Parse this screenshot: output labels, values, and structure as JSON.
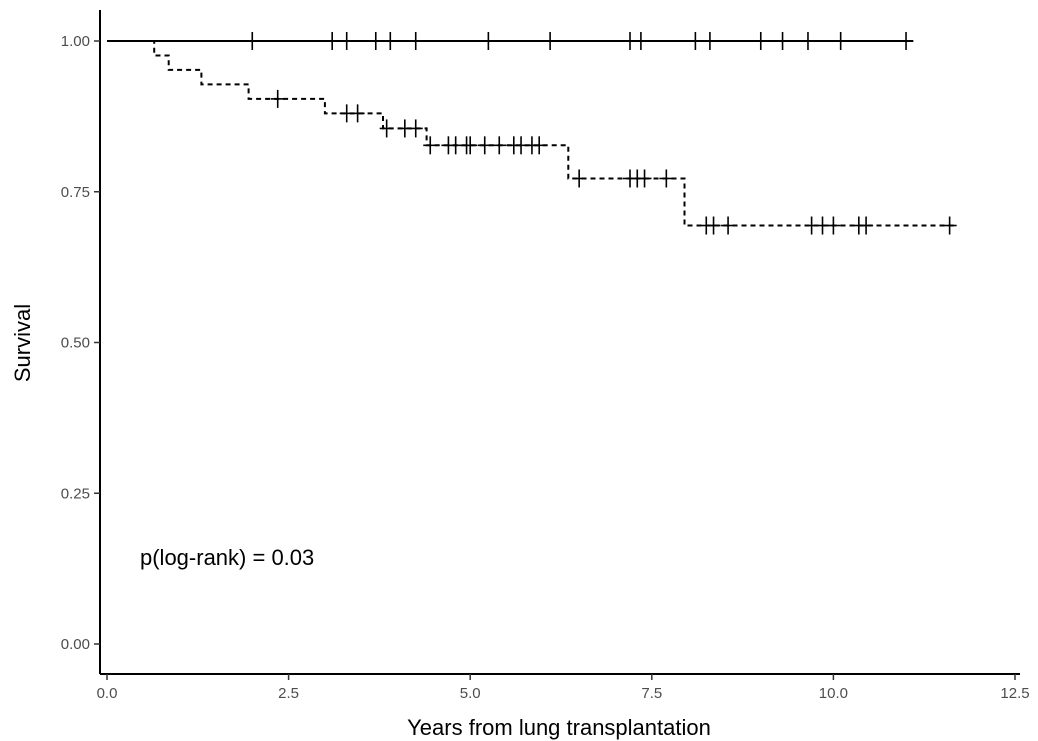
{
  "chart_data": {
    "type": "line",
    "subtype": "kaplan-meier",
    "title": "",
    "xlabel": "Years from lung transplantation",
    "ylabel": "Survival",
    "xlim": [
      0,
      12.5
    ],
    "ylim": [
      0,
      1
    ],
    "x_ticks": [
      0,
      2.5,
      5,
      7.5,
      10,
      12.5
    ],
    "x_tick_labels": [
      "0.0",
      "2.5",
      "5.0",
      "7.5",
      "10.0",
      "12.5"
    ],
    "y_ticks": [
      0,
      0.25,
      0.5,
      0.75,
      1
    ],
    "y_tick_labels": [
      "0.00",
      "0.25",
      "0.50",
      "0.75",
      "1.00"
    ],
    "grid": false,
    "legend": "none",
    "annotation": "p(log-rank) = 0.03",
    "series": [
      {
        "style": "solid",
        "color": "#000000",
        "steps": [
          [
            0,
            1.0
          ],
          [
            11.1,
            1.0
          ]
        ],
        "censors": [
          [
            2.0,
            1.0
          ],
          [
            3.1,
            1.0
          ],
          [
            3.3,
            1.0
          ],
          [
            3.7,
            1.0
          ],
          [
            3.9,
            1.0
          ],
          [
            4.25,
            1.0
          ],
          [
            5.25,
            1.0
          ],
          [
            6.1,
            1.0
          ],
          [
            7.2,
            1.0
          ],
          [
            7.35,
            1.0
          ],
          [
            8.1,
            1.0
          ],
          [
            8.3,
            1.0
          ],
          [
            9.0,
            1.0
          ],
          [
            9.3,
            1.0
          ],
          [
            9.65,
            1.0
          ],
          [
            10.1,
            1.0
          ],
          [
            11.0,
            1.0
          ]
        ]
      },
      {
        "style": "dashed",
        "color": "#000000",
        "steps": [
          [
            0,
            1.0
          ],
          [
            0.65,
            1.0
          ],
          [
            0.65,
            0.976
          ],
          [
            0.85,
            0.976
          ],
          [
            0.85,
            0.952
          ],
          [
            1.3,
            0.952
          ],
          [
            1.3,
            0.928
          ],
          [
            1.95,
            0.928
          ],
          [
            1.95,
            0.904
          ],
          [
            3.0,
            0.904
          ],
          [
            3.0,
            0.88
          ],
          [
            3.8,
            0.88
          ],
          [
            3.8,
            0.855
          ],
          [
            4.4,
            0.855
          ],
          [
            4.4,
            0.827
          ],
          [
            6.35,
            0.827
          ],
          [
            6.35,
            0.772
          ],
          [
            7.95,
            0.772
          ],
          [
            7.95,
            0.694
          ],
          [
            11.7,
            0.694
          ]
        ],
        "censors": [
          [
            2.35,
            0.904
          ],
          [
            3.3,
            0.88
          ],
          [
            3.45,
            0.88
          ],
          [
            3.85,
            0.855
          ],
          [
            4.1,
            0.855
          ],
          [
            4.25,
            0.855
          ],
          [
            4.45,
            0.827
          ],
          [
            4.7,
            0.827
          ],
          [
            4.8,
            0.827
          ],
          [
            4.95,
            0.827
          ],
          [
            5.0,
            0.827
          ],
          [
            5.2,
            0.827
          ],
          [
            5.4,
            0.827
          ],
          [
            5.6,
            0.827
          ],
          [
            5.7,
            0.827
          ],
          [
            5.85,
            0.827
          ],
          [
            5.95,
            0.827
          ],
          [
            6.5,
            0.772
          ],
          [
            7.2,
            0.772
          ],
          [
            7.3,
            0.772
          ],
          [
            7.4,
            0.772
          ],
          [
            7.7,
            0.772
          ],
          [
            8.25,
            0.694
          ],
          [
            8.35,
            0.694
          ],
          [
            8.55,
            0.694
          ],
          [
            9.7,
            0.694
          ],
          [
            9.85,
            0.694
          ],
          [
            10.0,
            0.694
          ],
          [
            10.35,
            0.694
          ],
          [
            10.45,
            0.694
          ],
          [
            11.6,
            0.694
          ]
        ]
      }
    ]
  }
}
